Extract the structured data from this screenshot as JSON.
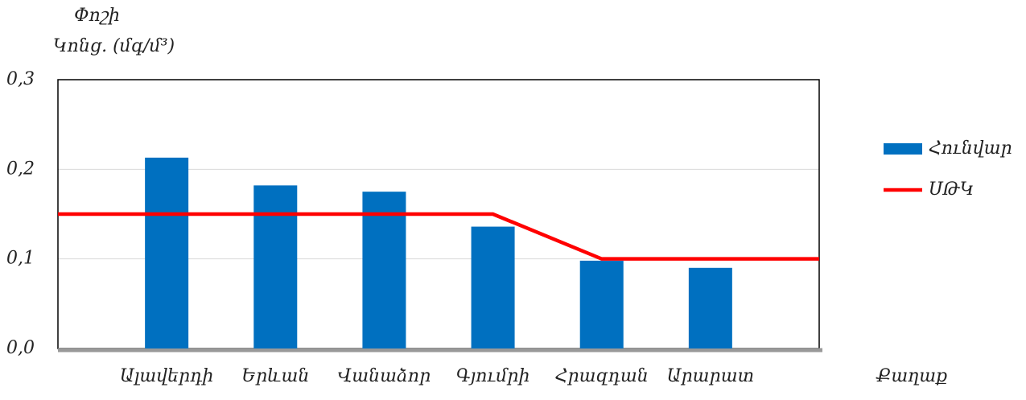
{
  "chart_data": {
    "type": "bar",
    "y_label_line1": "Փոշի",
    "y_label_line2": "Կոնց. (մգ/մ³)",
    "x_label": "Քաղաք",
    "categories": [
      null,
      "Ալավերդի",
      "Երևան",
      "Վանաձոր",
      "Գյումրի",
      "Հրազդան",
      "Արարատ",
      null
    ],
    "series": [
      {
        "name": "Հունվար",
        "type": "bar",
        "color": "#0070c0",
        "values": [
          null,
          0.213,
          0.182,
          0.175,
          0.136,
          0.098,
          0.09,
          null
        ]
      },
      {
        "name": "ՍԹԿ",
        "type": "line",
        "color": "#ff0000",
        "values": [
          0.15,
          0.15,
          0.15,
          0.15,
          0.15,
          0.1,
          0.1,
          0.1
        ]
      }
    ],
    "ylim": [
      0,
      0.3
    ],
    "yticks": [
      {
        "value": 0,
        "label": "0,0"
      },
      {
        "value": 0.1,
        "label": "0,1"
      },
      {
        "value": 0.2,
        "label": "0,2"
      },
      {
        "value": 0.3,
        "label": "0,3"
      }
    ],
    "grid": true,
    "legend": "right"
  }
}
